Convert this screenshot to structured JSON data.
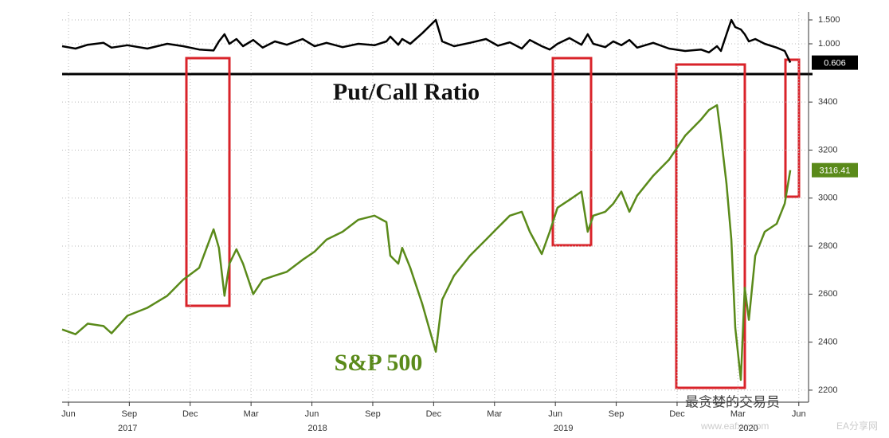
{
  "chart_data": [
    {
      "type": "line",
      "title": "Put/Call Ratio",
      "xlim": [
        2017.391,
        2020.457
      ],
      "ylim": [
        0.383,
        1.667
      ],
      "yticks": [
        {
          "value": 1.5,
          "label": "1.500"
        },
        {
          "value": 1.0,
          "label": "1.000"
        }
      ],
      "grid": true,
      "series": [
        {
          "name": "Put/Call Ratio",
          "color": "#000000",
          "x": [
            2017.391,
            2017.446,
            2017.496,
            2017.561,
            2017.594,
            2017.659,
            2017.741,
            2017.823,
            2017.888,
            2017.954,
            2018.013,
            2018.035,
            2018.058,
            2018.078,
            2018.107,
            2018.134,
            2018.176,
            2018.215,
            2018.265,
            2018.314,
            2018.379,
            2018.428,
            2018.477,
            2018.543,
            2018.608,
            2018.674,
            2018.723,
            2018.739,
            2018.772,
            2018.788,
            2018.821,
            2018.87,
            2018.926,
            2018.952,
            2019.001,
            2019.066,
            2019.132,
            2019.181,
            2019.23,
            2019.279,
            2019.312,
            2019.361,
            2019.394,
            2019.426,
            2019.475,
            2019.524,
            2019.55,
            2019.573,
            2019.622,
            2019.655,
            2019.688,
            2019.721,
            2019.753,
            2019.819,
            2019.884,
            2019.95,
            2020.015,
            2020.048,
            2020.081,
            2020.097,
            2020.12,
            2020.14,
            2020.156,
            2020.179,
            2020.195,
            2020.212,
            2020.238,
            2020.277,
            2020.326,
            2020.359,
            2020.382
          ],
          "values": [
            0.95,
            0.9,
            0.98,
            1.02,
            0.92,
            0.97,
            0.9,
            1.0,
            0.95,
            0.88,
            0.86,
            1.05,
            1.2,
            1.0,
            1.1,
            0.95,
            1.08,
            0.92,
            1.05,
            0.98,
            1.1,
            0.95,
            1.02,
            0.93,
            1.0,
            0.97,
            1.05,
            1.15,
            0.98,
            1.1,
            1.0,
            1.22,
            1.5,
            1.05,
            0.95,
            1.02,
            1.1,
            0.96,
            1.03,
            0.9,
            1.08,
            0.95,
            0.88,
            1.0,
            1.12,
            0.98,
            1.2,
            1.0,
            0.93,
            1.05,
            0.97,
            1.08,
            0.92,
            1.02,
            0.9,
            0.85,
            0.88,
            0.82,
            0.95,
            0.85,
            1.2,
            1.5,
            1.35,
            1.3,
            1.2,
            1.05,
            1.1,
            1.0,
            0.92,
            0.85,
            0.606
          ]
        }
      ]
    },
    {
      "type": "line",
      "title": "S&P 500",
      "xlim": [
        2017.391,
        2020.457
      ],
      "ylim": [
        2150,
        3510
      ],
      "yticks": [
        2200,
        2400,
        2600,
        2800,
        3000,
        3200,
        3400
      ],
      "grid": true,
      "xticks": [
        {
          "value": 2017.417,
          "label": "Jun"
        },
        {
          "value": 2017.667,
          "label": "Sep"
        },
        {
          "value": 2017.917,
          "label": "Dec"
        },
        {
          "value": 2018.167,
          "label": "Mar"
        },
        {
          "value": 2018.417,
          "label": "Jun"
        },
        {
          "value": 2018.667,
          "label": "Sep"
        },
        {
          "value": 2018.917,
          "label": "Dec"
        },
        {
          "value": 2019.167,
          "label": "Mar"
        },
        {
          "value": 2019.417,
          "label": "Jun"
        },
        {
          "value": 2019.667,
          "label": "Sep"
        },
        {
          "value": 2019.917,
          "label": "Dec"
        },
        {
          "value": 2020.167,
          "label": "Mar"
        },
        {
          "value": 2020.417,
          "label": "Jun"
        }
      ],
      "year_labels": [
        {
          "value": 2017.66,
          "label": "2017"
        },
        {
          "value": 2018.44,
          "label": "2018"
        },
        {
          "value": 2019.45,
          "label": "2019"
        },
        {
          "value": 2020.21,
          "label": "2020"
        }
      ],
      "series": [
        {
          "name": "S&P 500",
          "color": "#5a8a1a",
          "x": [
            2017.391,
            2017.446,
            2017.496,
            2017.561,
            2017.594,
            2017.659,
            2017.741,
            2017.823,
            2017.888,
            2017.954,
            2018.013,
            2018.035,
            2018.058,
            2018.078,
            2018.107,
            2018.134,
            2018.176,
            2018.215,
            2018.265,
            2018.314,
            2018.379,
            2018.428,
            2018.477,
            2018.543,
            2018.608,
            2018.674,
            2018.723,
            2018.739,
            2018.772,
            2018.788,
            2018.821,
            2018.87,
            2018.926,
            2018.952,
            2019.001,
            2019.066,
            2019.132,
            2019.181,
            2019.23,
            2019.279,
            2019.312,
            2019.361,
            2019.394,
            2019.426,
            2019.475,
            2019.524,
            2019.55,
            2019.573,
            2019.622,
            2019.655,
            2019.688,
            2019.721,
            2019.753,
            2019.819,
            2019.884,
            2019.95,
            2020.015,
            2020.048,
            2020.081,
            2020.097,
            2020.12,
            2020.14,
            2020.156,
            2020.179,
            2020.195,
            2020.212,
            2020.238,
            2020.277,
            2020.326,
            2020.359,
            2020.382
          ],
          "values": [
            2453,
            2433,
            2477,
            2467,
            2437,
            2510,
            2543,
            2593,
            2660,
            2710,
            2870,
            2793,
            2593,
            2727,
            2787,
            2727,
            2600,
            2660,
            2677,
            2693,
            2743,
            2777,
            2827,
            2860,
            2910,
            2927,
            2900,
            2760,
            2727,
            2793,
            2710,
            2560,
            2360,
            2577,
            2677,
            2760,
            2827,
            2877,
            2927,
            2943,
            2860,
            2767,
            2860,
            2960,
            2993,
            3027,
            2860,
            2927,
            2943,
            2977,
            3027,
            2943,
            3010,
            3093,
            3160,
            3260,
            3327,
            3367,
            3387,
            3260,
            3060,
            2827,
            2460,
            2243,
            2627,
            2493,
            2760,
            2860,
            2893,
            2977,
            3116.41
          ]
        }
      ]
    }
  ],
  "watermark": [
    "最贪婪的交易员",
    "www.eafxw.com",
    "EA分享网"
  ]
}
